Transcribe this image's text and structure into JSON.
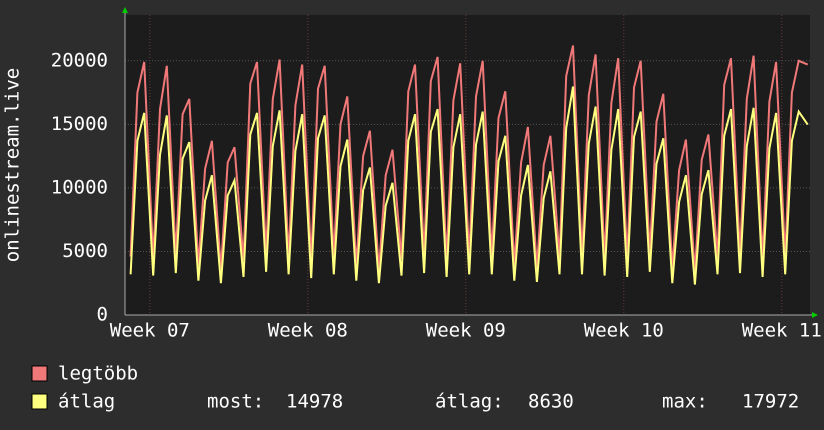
{
  "chart_data": {
    "type": "line",
    "y_label": "onlinestream.live",
    "x": [
      0.25,
      0.55,
      0.85,
      1.25,
      1.55,
      1.85,
      2.25,
      2.55,
      2.85,
      3.25,
      3.55,
      3.85,
      4.25,
      4.55,
      4.85,
      5.25,
      5.55,
      5.85,
      6.25,
      6.55,
      6.85,
      7.25,
      7.55,
      7.85,
      8.25,
      8.55,
      8.85,
      9.25,
      9.55,
      9.85,
      10.25,
      10.55,
      10.85,
      11.25,
      11.55,
      11.85,
      12.25,
      12.55,
      12.85,
      13.25,
      13.55,
      13.85,
      14.25,
      14.55,
      14.85,
      15.25,
      15.55,
      15.85,
      16.25,
      16.55,
      16.85,
      17.25,
      17.55,
      17.85,
      18.25,
      18.55,
      18.85,
      19.25,
      19.55,
      19.85,
      20.25,
      20.55,
      20.85,
      21.25,
      21.55,
      21.85,
      22.25,
      22.55,
      22.85,
      23.25,
      23.55,
      23.85,
      24.25,
      24.55,
      24.85,
      25.25,
      25.55,
      25.85,
      26.25,
      26.55,
      26.85,
      27.25,
      27.55,
      27.85,
      28.25,
      28.55,
      28.85,
      29.25,
      29.55,
      29.85,
      30.25
    ],
    "series": [
      {
        "name": "legtöbb",
        "color": "#f07878",
        "values": [
          4600,
          17500,
          19900,
          4400,
          16200,
          19600,
          4700,
          15800,
          17000,
          3900,
          11500,
          13700,
          3600,
          12000,
          13200,
          4300,
          18200,
          19900,
          4800,
          17000,
          20100,
          4500,
          16500,
          19700,
          4200,
          17800,
          19600,
          4600,
          15000,
          17200,
          3800,
          12500,
          14500,
          3500,
          11000,
          13000,
          4400,
          17600,
          19700,
          4700,
          18400,
          20300,
          4300,
          16900,
          19800,
          4500,
          17200,
          20000,
          4600,
          15500,
          17600,
          3900,
          12000,
          14800,
          3700,
          11800,
          14100,
          4500,
          18800,
          21200,
          4600,
          17300,
          20500,
          4400,
          16700,
          20200,
          4300,
          17900,
          20000,
          4800,
          15200,
          17400,
          3600,
          11400,
          13800,
          3400,
          12200,
          14200,
          4500,
          18100,
          20200,
          4700,
          17000,
          20400,
          4300,
          16800,
          19900,
          4500,
          17500,
          20000,
          19700
        ]
      },
      {
        "name": "átlag",
        "color": "#ffff80",
        "values": [
          3200,
          13700,
          15900,
          3100,
          12600,
          15700,
          3300,
          12300,
          13600,
          2700,
          9000,
          11000,
          2500,
          9400,
          10600,
          3000,
          14200,
          15900,
          3400,
          13300,
          16100,
          3200,
          12900,
          15800,
          2900,
          13900,
          15700,
          3200,
          11700,
          13800,
          2700,
          9800,
          11600,
          2500,
          8600,
          10400,
          3100,
          13700,
          15800,
          3300,
          14400,
          16200,
          3000,
          13200,
          15800,
          3200,
          13400,
          16000,
          3200,
          12100,
          14100,
          2700,
          9400,
          11800,
          2600,
          9200,
          11300,
          3200,
          14700,
          17972,
          3200,
          13500,
          16400,
          3100,
          13000,
          16200,
          3000,
          14000,
          16000,
          3400,
          11900,
          13900,
          2500,
          8900,
          11000,
          2400,
          9500,
          11400,
          3200,
          14100,
          16200,
          3300,
          13300,
          16300,
          3000,
          13100,
          15900,
          3200,
          13700,
          16000,
          14978
        ]
      }
    ],
    "xlim": [
      0,
      30.35
    ],
    "xticks": [
      {
        "value": 1.1,
        "label": "Week 07"
      },
      {
        "value": 8.1,
        "label": "Week 08"
      },
      {
        "value": 15.1,
        "label": "Week 09"
      },
      {
        "value": 22.1,
        "label": "Week 10"
      },
      {
        "value": 29.1,
        "label": "Week 11"
      }
    ],
    "ylim": [
      0,
      23600
    ],
    "yticks": [
      0,
      5000,
      10000,
      15000,
      20000
    ],
    "grid": true,
    "stats": [
      {
        "label": "most:",
        "value": 14978
      },
      {
        "label": "átlag:",
        "value": 8630
      },
      {
        "label": "max:",
        "value": 17972
      }
    ]
  }
}
